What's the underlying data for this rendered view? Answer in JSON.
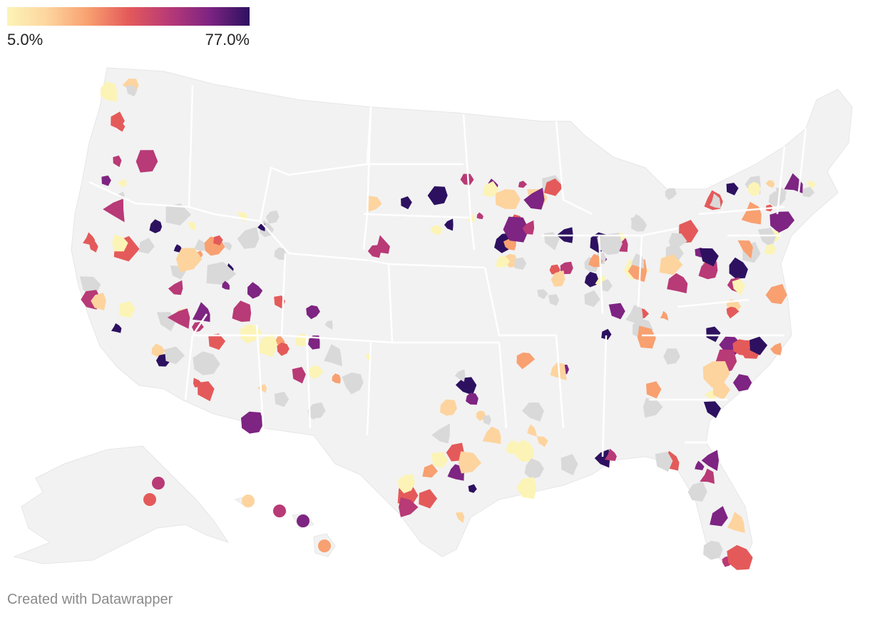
{
  "legend": {
    "min_label": "5.0%",
    "max_label": "77.0%",
    "min_value": 5.0,
    "max_value": 77.0,
    "color_ramp": [
      "#fcf4b6",
      "#fdd49e",
      "#f8a070",
      "#e45a5a",
      "#b83a76",
      "#7e2482",
      "#2d1160"
    ]
  },
  "map": {
    "land_color": "#f2f2f2",
    "no_data_color": "#d9d9d9",
    "border_color": "#ffffff"
  },
  "footer": {
    "credit": "Created with Datawrapper"
  }
}
